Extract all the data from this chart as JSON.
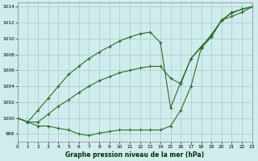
{
  "title": "Graphe pression niveau de la mer (hPa)",
  "background_color": "#d0ecec",
  "grid_color": "#a8cccc",
  "line_color": "#2a6e2a",
  "xlim": [
    0,
    23
  ],
  "ylim": [
    997.0,
    1014.5
  ],
  "yticks": [
    998,
    1000,
    1002,
    1004,
    1006,
    1008,
    1010,
    1012,
    1014
  ],
  "xticks": [
    0,
    1,
    2,
    3,
    4,
    5,
    6,
    7,
    8,
    9,
    10,
    11,
    12,
    13,
    14,
    15,
    16,
    17,
    18,
    19,
    20,
    21,
    22,
    23
  ],
  "series_bottom": [
    1000.0,
    999.5,
    999.0,
    999.0,
    998.7,
    998.5,
    998.0,
    997.8,
    998.1,
    998.3,
    998.5,
    998.5,
    998.5,
    998.5,
    998.5,
    999.0,
    1001.0,
    1004.0,
    1008.8,
    1010.2,
    1012.3,
    1013.3,
    1013.7,
    1014.0
  ],
  "series_mid": [
    1000.0,
    999.5,
    999.5,
    1000.5,
    1001.5,
    1002.3,
    1003.2,
    1004.0,
    1004.7,
    1005.2,
    1005.7,
    1006.0,
    1006.3,
    1006.5,
    1006.5,
    1005.0,
    1004.3,
    1007.5,
    1009.0,
    1010.3,
    1012.3,
    1013.2,
    1013.7,
    1014.0
  ],
  "series_top": [
    1000.0,
    999.5,
    1001.0,
    1002.5,
    1004.0,
    1005.5,
    1006.5,
    1007.5,
    1008.3,
    1009.0,
    1009.7,
    1010.2,
    1010.6,
    1010.8,
    1009.5,
    1001.3,
    1004.5,
    1007.5,
    1008.9,
    1010.5,
    1012.3,
    1012.8,
    1013.3,
    1014.0
  ]
}
